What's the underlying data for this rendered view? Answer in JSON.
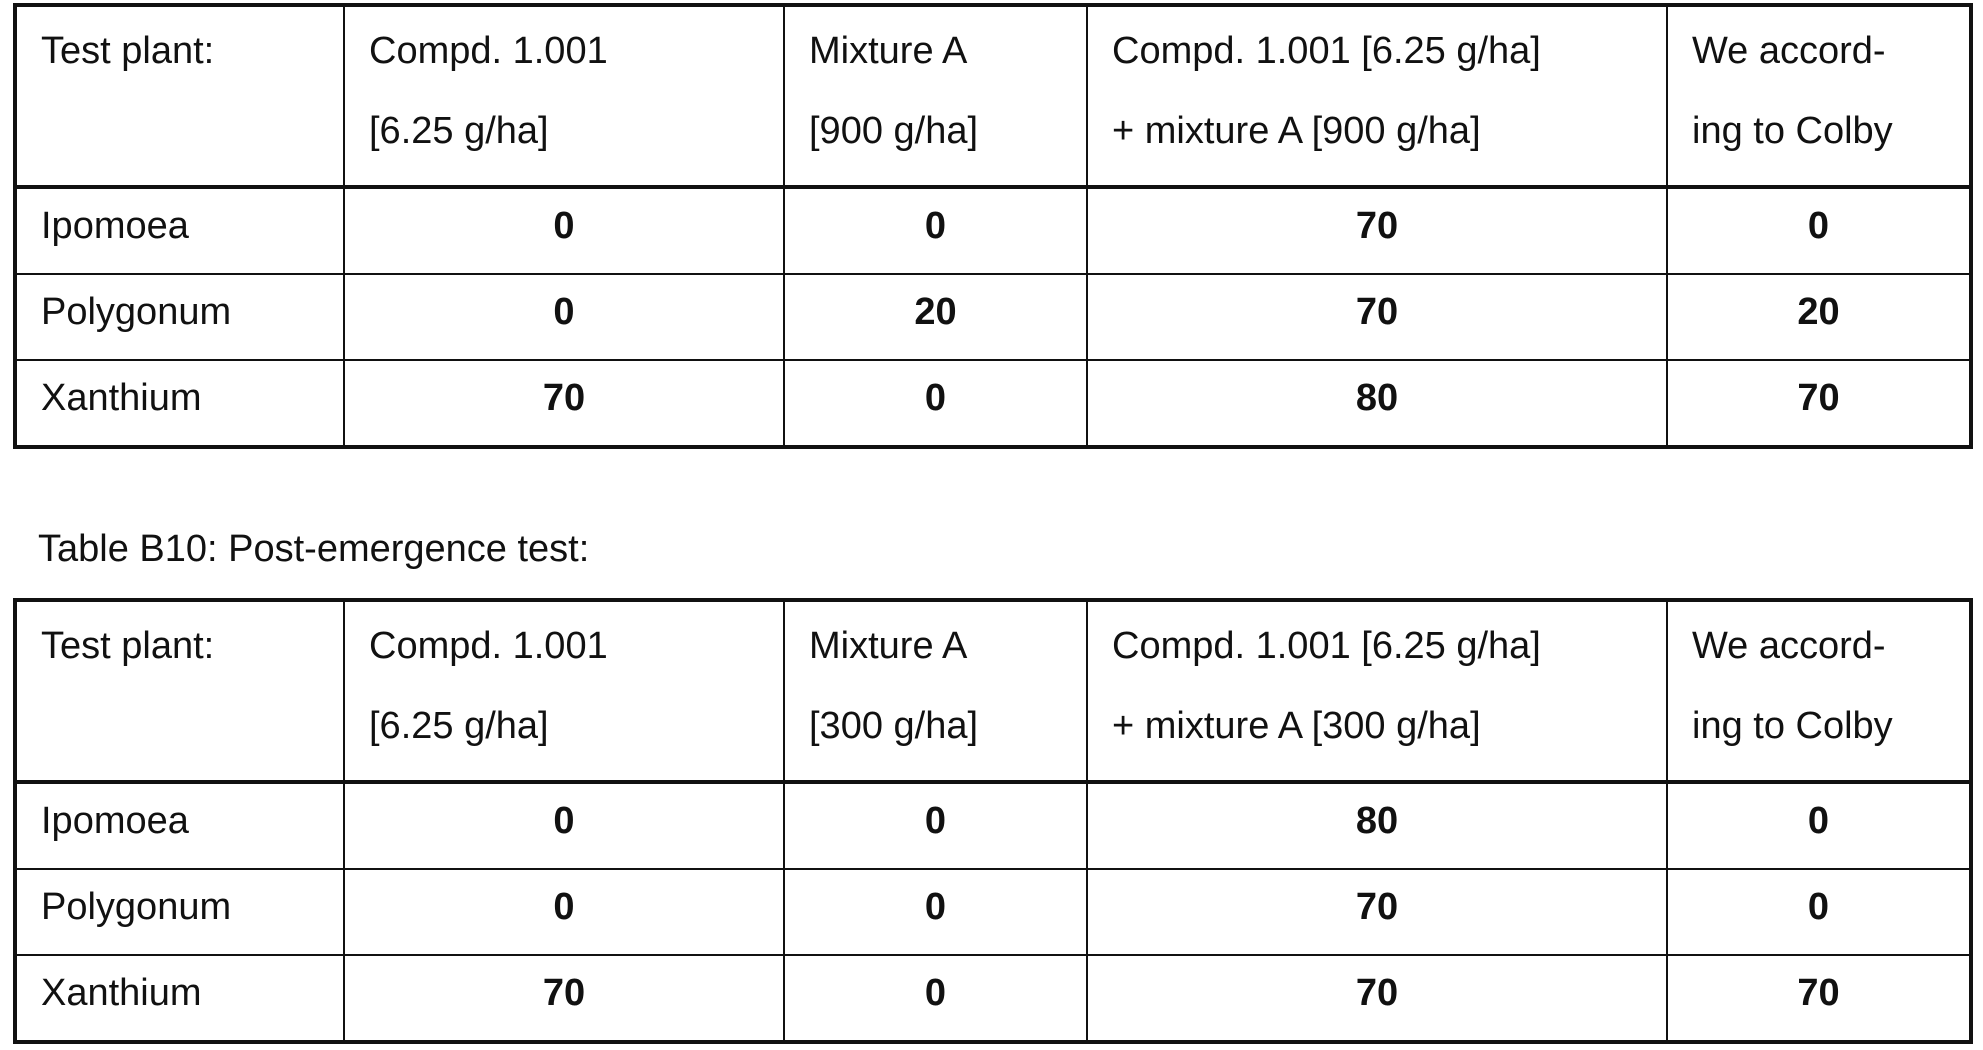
{
  "tables": [
    {
      "headers": [
        "Test plant:",
        "Compd. 1.001 [6.25 g/ha]",
        "Mixture A [900 g/ha]",
        "Compd. 1.001 [6.25 g/ha] + mixture A [900 g/ha]",
        "We accord-ing to Colby"
      ],
      "header_lines": [
        [
          "Test plant:",
          ""
        ],
        [
          "Compd. 1.001",
          "[6.25 g/ha]"
        ],
        [
          "Mixture A",
          "[900 g/ha]"
        ],
        [
          "Compd. 1.001 [6.25 g/ha]",
          "+ mixture A [900 g/ha]"
        ],
        [
          "We accord-",
          "ing to Colby"
        ]
      ],
      "rows": [
        [
          "Ipomoea",
          "0",
          "0",
          "70",
          "0"
        ],
        [
          "Polygonum",
          "0",
          "20",
          "70",
          "20"
        ],
        [
          "Xanthium",
          "70",
          "0",
          "80",
          "70"
        ]
      ]
    },
    {
      "caption": "Table B10: Post-emergence test:",
      "header_lines": [
        [
          "Test plant:",
          ""
        ],
        [
          "Compd. 1.001",
          "[6.25 g/ha]"
        ],
        [
          "Mixture A",
          "[300 g/ha]"
        ],
        [
          "Compd. 1.001 [6.25 g/ha]",
          "+ mixture A [300 g/ha]"
        ],
        [
          "We accord-",
          "ing to Colby"
        ]
      ],
      "rows": [
        [
          "Ipomoea",
          "0",
          "0",
          "80",
          "0"
        ],
        [
          "Polygonum",
          "0",
          "0",
          "70",
          "0"
        ],
        [
          "Xanthium",
          "70",
          "0",
          "70",
          "70"
        ]
      ]
    }
  ]
}
